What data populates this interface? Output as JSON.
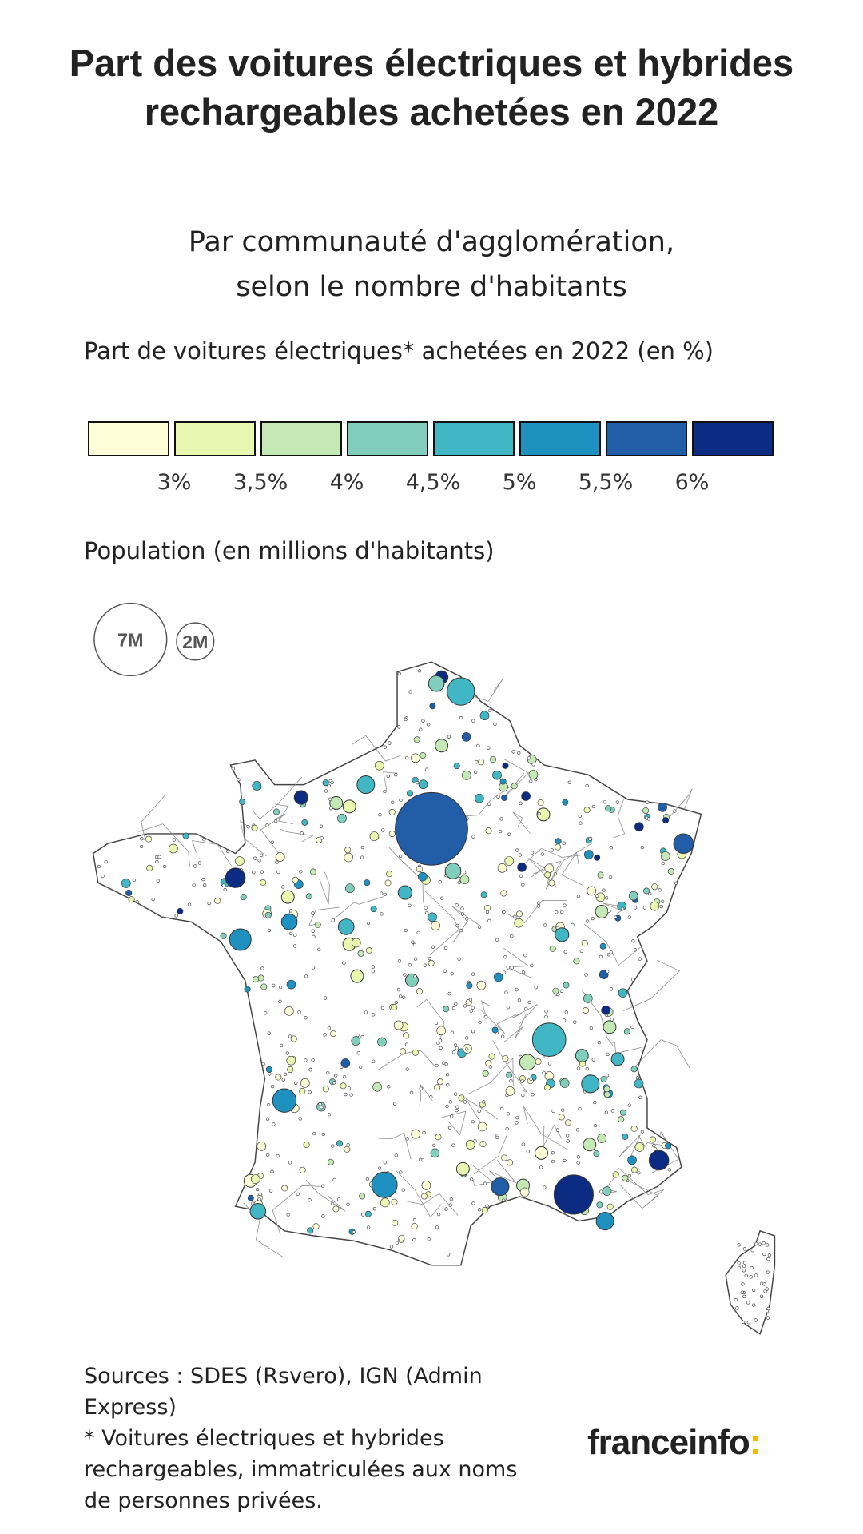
{
  "title": "Part des voitures électriques et hybrides rechargeables achetées en 2022",
  "subtitle_line1": "Par communauté d'agglomération,",
  "subtitle_line2": "selon le nombre d'habitants",
  "color_legend": {
    "title": "Part de voitures électriques* achetées en 2022 (en %)",
    "colors": [
      "#fdfed8",
      "#eaf7b0",
      "#c5e9b5",
      "#80cebb",
      "#41b6c4",
      "#1f91c0",
      "#225ea8",
      "#0c2c84"
    ],
    "ticks": [
      "3%",
      "3,5%",
      "4%",
      "4,5%",
      "5%",
      "5,5%",
      "6%"
    ]
  },
  "size_legend": {
    "title": "Population (en millions d'habitants)",
    "large": "7M",
    "small": "2M"
  },
  "sources": "Sources : SDES (Rsvero), IGN (Admin Express)",
  "footnote": "* Voitures électriques et hybrides rechargeables, immatriculées aux noms de personnes privées.",
  "logo": "franceinfo",
  "logo_colon": ":"
}
